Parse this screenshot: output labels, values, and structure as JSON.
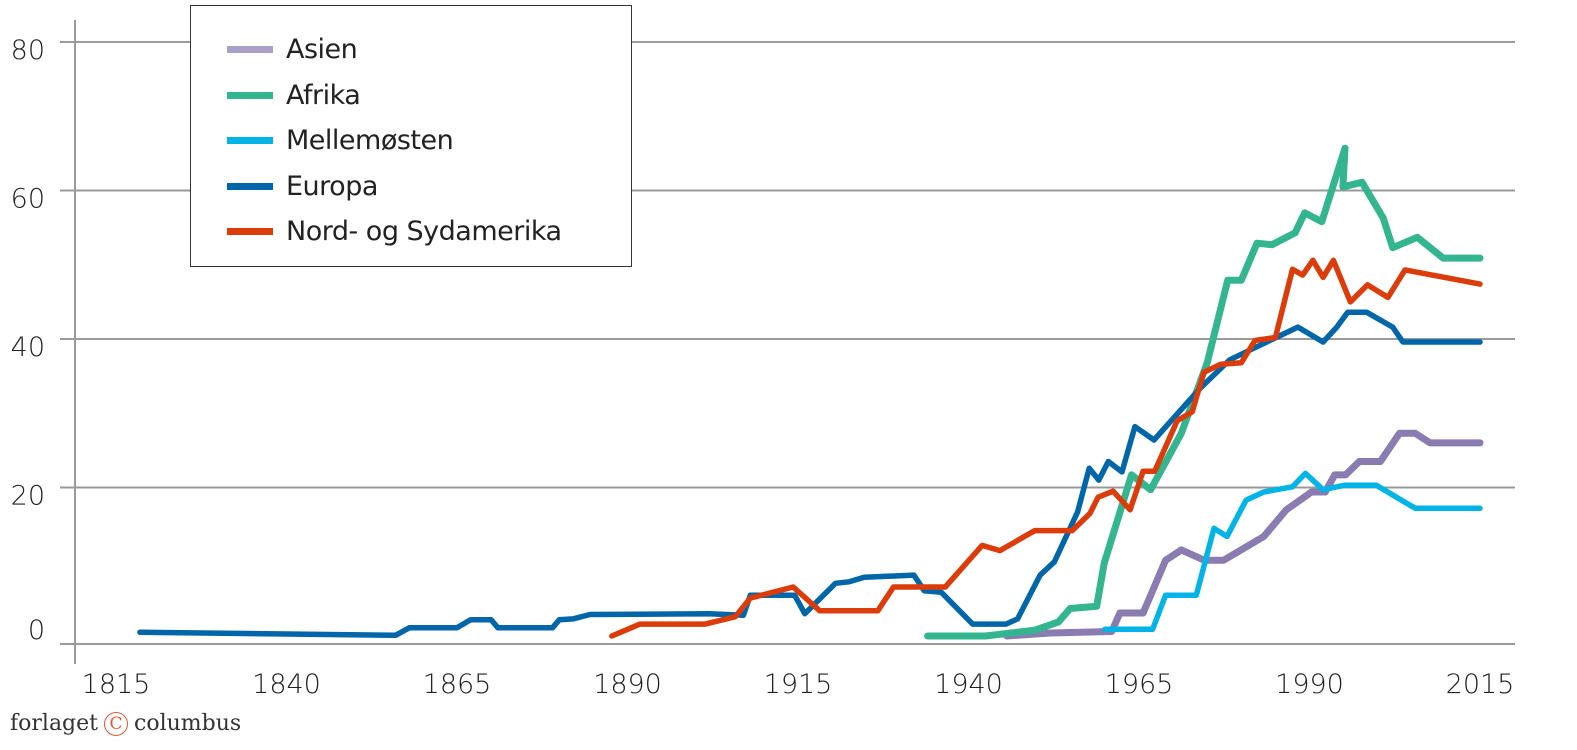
{
  "chart_data": {
    "type": "line",
    "title": "",
    "xlabel": "",
    "ylabel": "",
    "xlim": [
      1815,
      2015
    ],
    "ylim": [
      0,
      80
    ],
    "x_ticks": [
      "1815",
      "1840",
      "1865",
      "1890",
      "1915",
      "1940",
      "1965",
      "1990",
      "2015"
    ],
    "y_ticks": [
      "0",
      "20",
      "40",
      "60",
      "80"
    ],
    "grid": "horizontal",
    "legend_position": "top-left",
    "series": [
      {
        "name": "Asien",
        "color": "#8a7bb0",
        "legend_color": "#a99fcb",
        "points": [
          [
            1945.6,
            0
          ],
          [
            1952,
            0.4
          ],
          [
            1961,
            0.6
          ],
          [
            1962.2,
            3.1
          ],
          [
            1965.6,
            3.1
          ],
          [
            1968.9,
            10.2
          ],
          [
            1971.2,
            11.6
          ],
          [
            1974.6,
            10.2
          ],
          [
            1977.4,
            10.2
          ],
          [
            1983.3,
            13.4
          ],
          [
            1986.6,
            17
          ],
          [
            1990.3,
            19.4
          ],
          [
            1992.3,
            19.4
          ],
          [
            1993.7,
            21.7
          ],
          [
            1995.3,
            21.7
          ],
          [
            1997.3,
            23.5
          ],
          [
            2000.4,
            23.5
          ],
          [
            2003.2,
            27.3
          ],
          [
            2005.5,
            27.3
          ],
          [
            2007.7,
            26
          ],
          [
            2015,
            26
          ]
        ]
      },
      {
        "name": "Afrika",
        "color": "#33b58f",
        "legend_color": "#33b58f",
        "points": [
          [
            1934,
            0
          ],
          [
            1942.5,
            0
          ],
          [
            1949.8,
            0.8
          ],
          [
            1953.2,
            1.9
          ],
          [
            1954.9,
            3.7
          ],
          [
            1958.8,
            4
          ],
          [
            1959.9,
            9.8
          ],
          [
            1963.9,
            21.7
          ],
          [
            1966.7,
            19.7
          ],
          [
            1971.2,
            27.3
          ],
          [
            1975,
            36.8
          ],
          [
            1978,
            47.9
          ],
          [
            1980,
            47.9
          ],
          [
            1982.3,
            52.9
          ],
          [
            1984.5,
            52.7
          ],
          [
            1987.9,
            54.3
          ],
          [
            1989.3,
            57
          ],
          [
            1991.8,
            55.8
          ],
          [
            1995.2,
            65.7
          ],
          [
            1994.9,
            60.5
          ],
          [
            1997.7,
            61.1
          ],
          [
            2000.8,
            56.3
          ],
          [
            2002.2,
            52.3
          ],
          [
            2005.8,
            53.7
          ],
          [
            2009.6,
            50.9
          ],
          [
            2015,
            50.9
          ]
        ]
      },
      {
        "name": "Mellemøsten",
        "color": "#00b4e6",
        "legend_color": "#00b4e6",
        "points": [
          [
            1960,
            0.9
          ],
          [
            1967,
            0.9
          ],
          [
            1968.9,
            5.5
          ],
          [
            1973.4,
            5.5
          ],
          [
            1976,
            14.5
          ],
          [
            1977.9,
            13.4
          ],
          [
            1980.7,
            18.3
          ],
          [
            1983.3,
            19.4
          ],
          [
            1987.5,
            20.1
          ],
          [
            1989.4,
            21.9
          ],
          [
            1992,
            19.7
          ],
          [
            1995.1,
            20.3
          ],
          [
            1999.8,
            20.3
          ],
          [
            2005.5,
            17.2
          ],
          [
            2015,
            17.2
          ]
        ]
      },
      {
        "name": "Europa",
        "color": "#0066aa",
        "legend_color": "#0066aa",
        "points": [
          [
            1818.5,
            0.5
          ],
          [
            1856,
            0.1
          ],
          [
            1858,
            1.1
          ],
          [
            1865,
            1.1
          ],
          [
            1867,
            2.2
          ],
          [
            1870,
            2.2
          ],
          [
            1871,
            1.1
          ],
          [
            1879,
            1.1
          ],
          [
            1880,
            2.2
          ],
          [
            1882,
            2.3
          ],
          [
            1884.5,
            2.9
          ],
          [
            1902,
            3
          ],
          [
            1907,
            2.8
          ],
          [
            1908,
            5.5
          ],
          [
            1914.5,
            5.5
          ],
          [
            1916,
            3
          ],
          [
            1920.5,
            7.1
          ],
          [
            1922.5,
            7.3
          ],
          [
            1924.7,
            7.9
          ],
          [
            1932,
            8.2
          ],
          [
            1933.5,
            6.1
          ],
          [
            1936,
            5.9
          ],
          [
            1940.6,
            1.6
          ],
          [
            1945.5,
            1.6
          ],
          [
            1947.2,
            2.3
          ],
          [
            1950.5,
            8.2
          ],
          [
            1952.6,
            10
          ],
          [
            1956,
            16.7
          ],
          [
            1957.7,
            22.6
          ],
          [
            1959.1,
            21
          ],
          [
            1960.5,
            23.5
          ],
          [
            1962.5,
            22.1
          ],
          [
            1964.4,
            28.2
          ],
          [
            1967.2,
            26.4
          ],
          [
            1974,
            33.4
          ],
          [
            1978.3,
            37.2
          ],
          [
            1988.3,
            41.6
          ],
          [
            1992,
            39.6
          ],
          [
            1994,
            41.6
          ],
          [
            1995.6,
            43.6
          ],
          [
            1998.4,
            43.6
          ],
          [
            2002.2,
            41.6
          ],
          [
            2003.7,
            39.6
          ],
          [
            2015,
            39.6
          ]
        ]
      },
      {
        "name": "Nord- og Sydamerika",
        "color": "#dc3c0a",
        "legend_color": "#dc3c0a",
        "points": [
          [
            1887.7,
            0
          ],
          [
            1891.8,
            1.6
          ],
          [
            1901.4,
            1.6
          ],
          [
            1905.8,
            2.6
          ],
          [
            1908,
            5.1
          ],
          [
            1914.3,
            6.6
          ],
          [
            1918.2,
            3.4
          ],
          [
            1926.7,
            3.4
          ],
          [
            1929,
            6.6
          ],
          [
            1936.6,
            6.6
          ],
          [
            1942,
            12.2
          ],
          [
            1944.6,
            11.5
          ],
          [
            1949.7,
            14.2
          ],
          [
            1955.2,
            14.2
          ],
          [
            1957.8,
            16.5
          ],
          [
            1959,
            18.7
          ],
          [
            1961.2,
            19.5
          ],
          [
            1963.7,
            17
          ],
          [
            1965.6,
            22.2
          ],
          [
            1967.3,
            22.2
          ],
          [
            1970.6,
            29
          ],
          [
            1972.8,
            30.2
          ],
          [
            1974.5,
            35.5
          ],
          [
            1977,
            36.6
          ],
          [
            1980,
            36.8
          ],
          [
            1982,
            39.8
          ],
          [
            1985,
            40.2
          ],
          [
            1987.5,
            49.4
          ],
          [
            1989,
            48.6
          ],
          [
            1990.5,
            50.6
          ],
          [
            1992,
            48.3
          ],
          [
            1993.5,
            50.6
          ],
          [
            1996,
            45
          ],
          [
            1998.5,
            47.3
          ],
          [
            2001.5,
            45.6
          ],
          [
            2004,
            49.3
          ],
          [
            2015,
            47.4
          ]
        ]
      }
    ]
  },
  "logo": {
    "left": "forlaget",
    "symbol": "C",
    "right": "columbus"
  }
}
